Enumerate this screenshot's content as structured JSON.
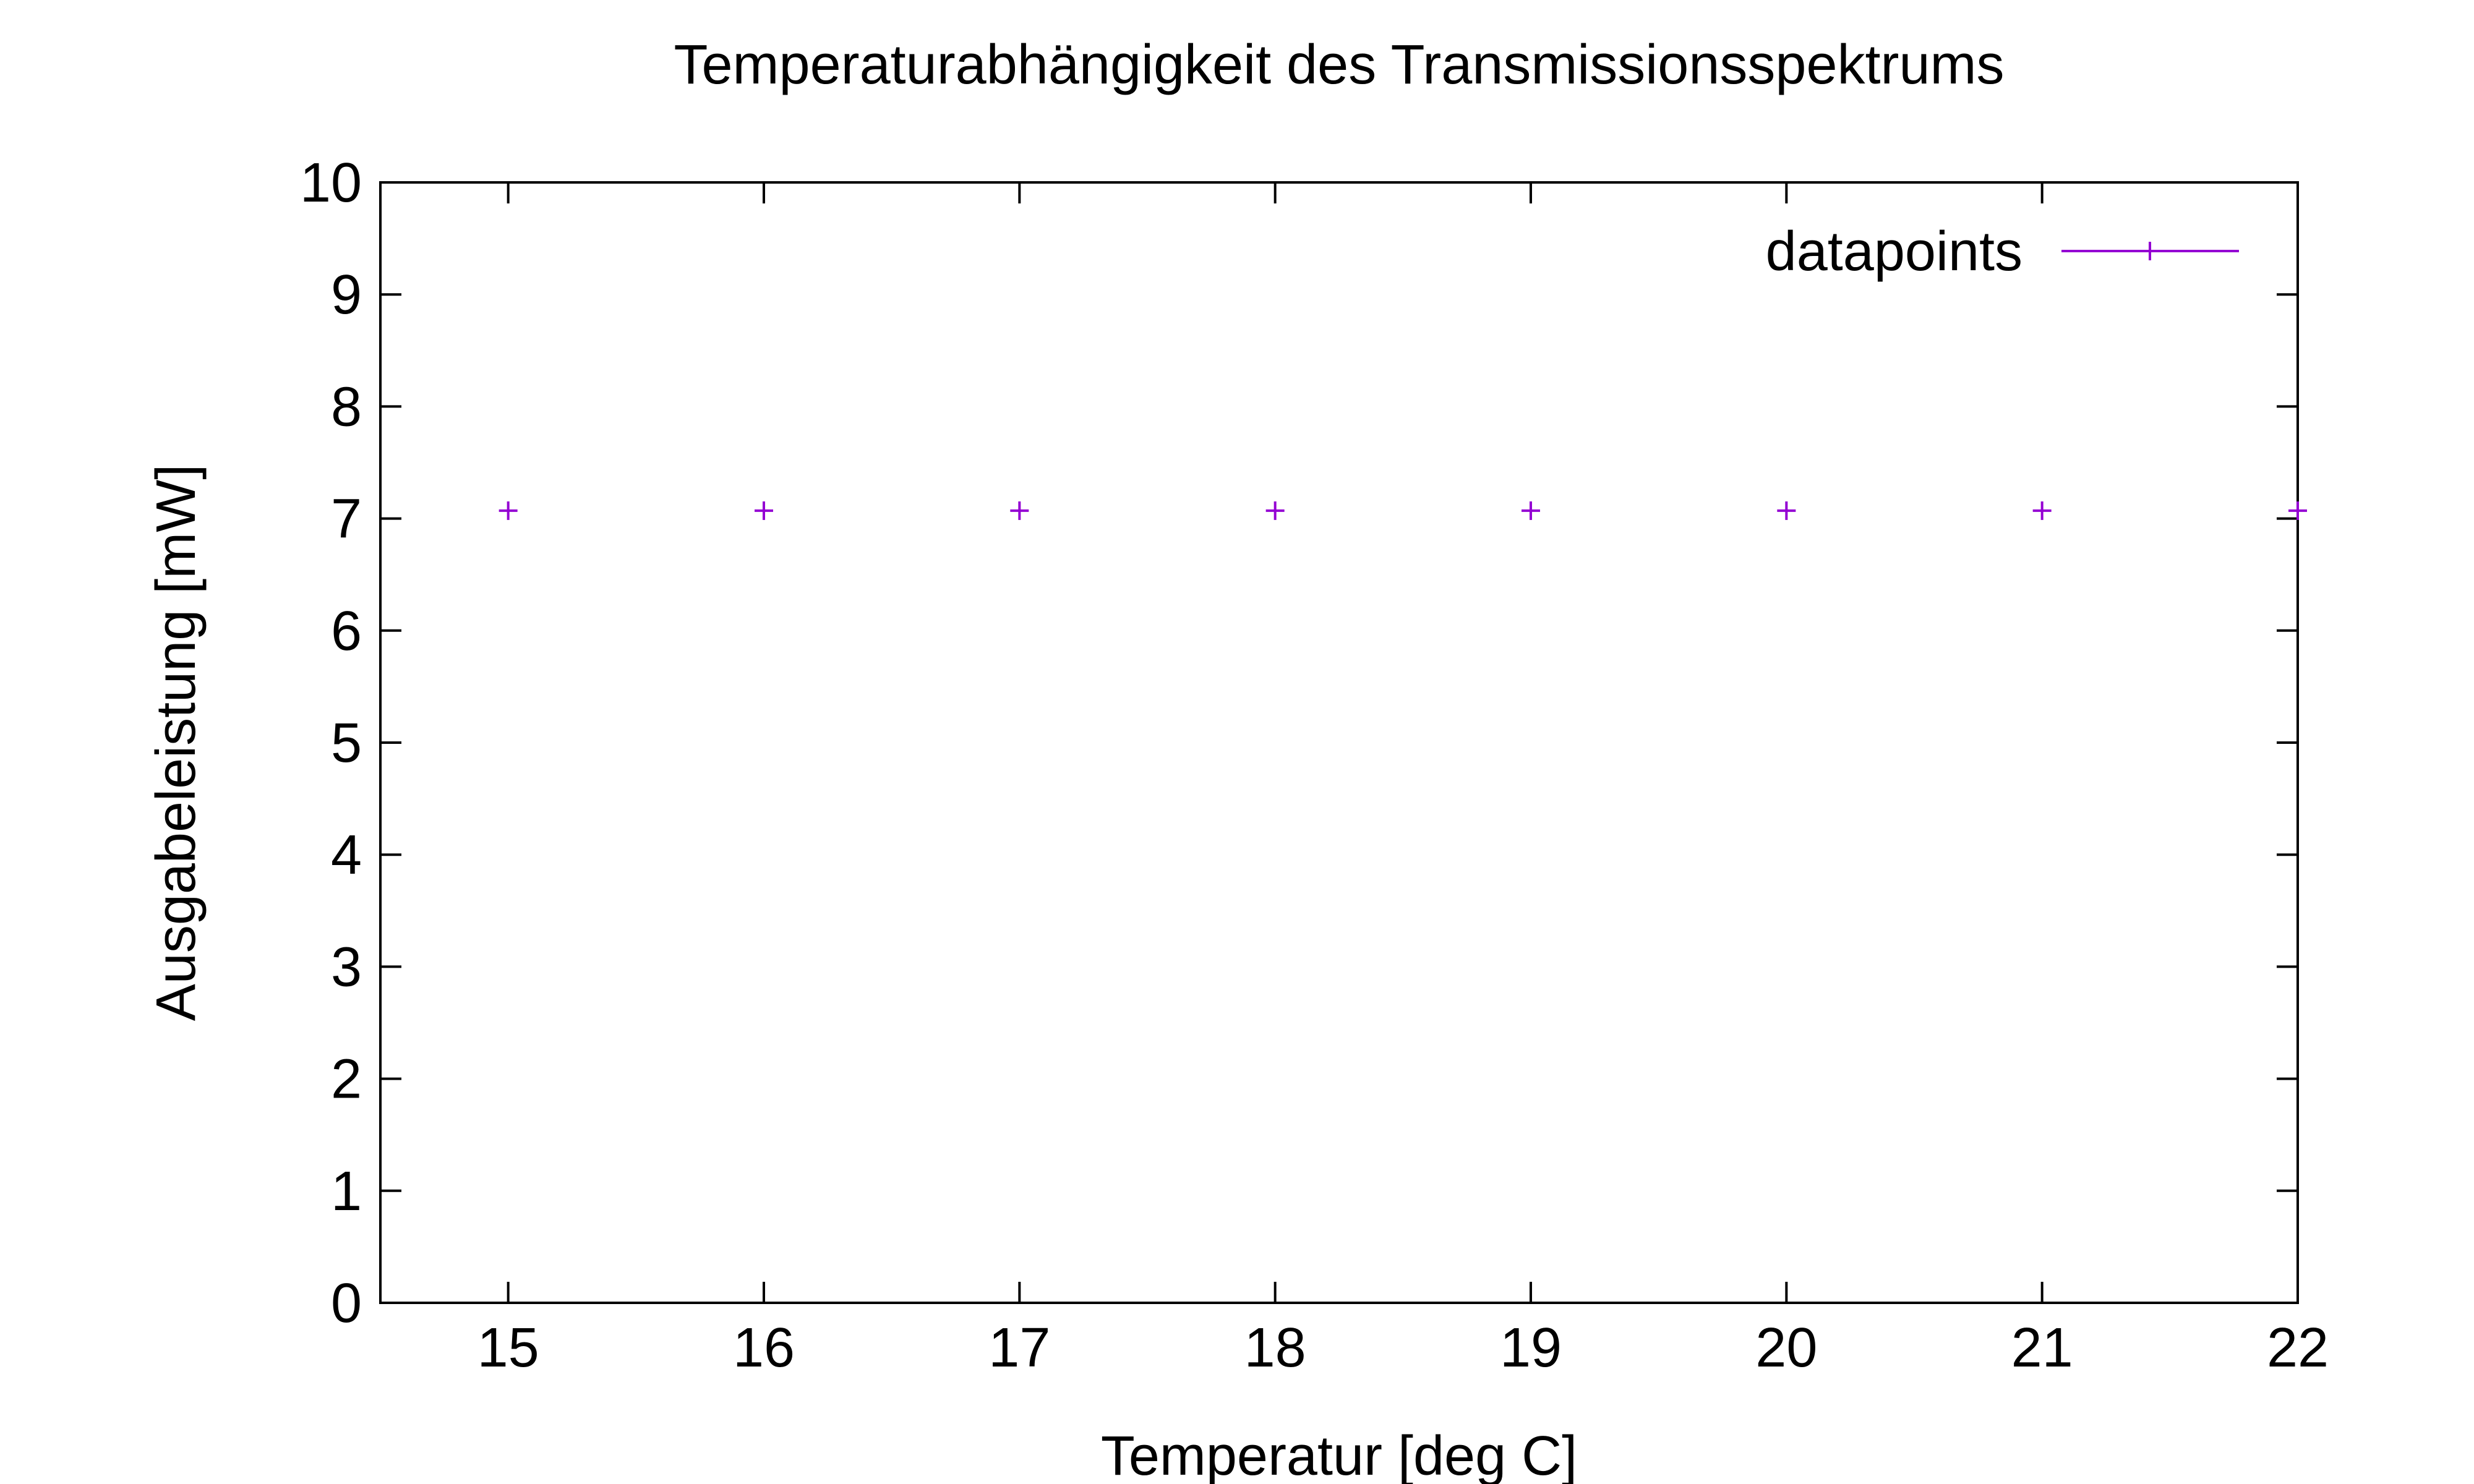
{
  "chart_data": {
    "type": "scatter",
    "title": "Temperaturabhängigkeit des Transmissionsspektrums",
    "xlabel": "Temperatur [deg C]",
    "ylabel": "Ausgabeleistung [mW]",
    "xlim": [
      14.5,
      22
    ],
    "ylim": [
      0,
      10
    ],
    "xticks": [
      "15",
      "16",
      "17",
      "18",
      "19",
      "20",
      "21",
      "22"
    ],
    "yticks": [
      "0",
      "1",
      "2",
      "3",
      "4",
      "5",
      "6",
      "7",
      "8",
      "9",
      "10"
    ],
    "grid": false,
    "legend_position": "top-right",
    "series": [
      {
        "name": "datapoints",
        "color": "#9400d3",
        "marker": "plus",
        "x": [
          15,
          16,
          17,
          18,
          19,
          20,
          21,
          22
        ],
        "y": [
          7.07,
          7.07,
          7.07,
          7.07,
          7.07,
          7.07,
          7.07,
          7.07
        ]
      }
    ]
  }
}
